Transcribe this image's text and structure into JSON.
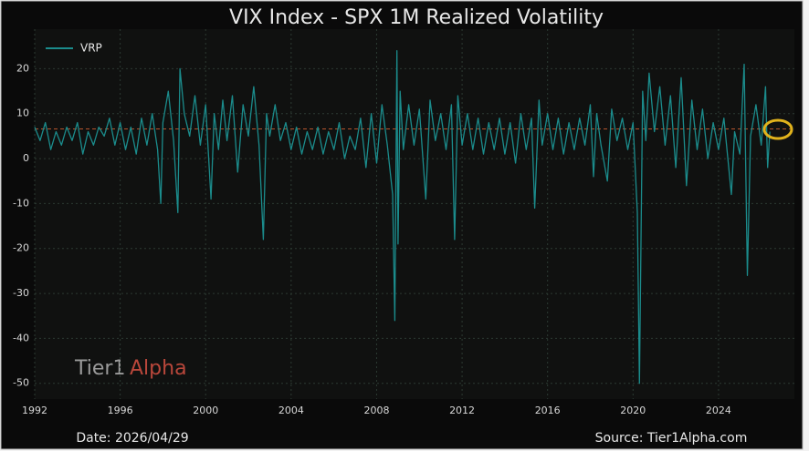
{
  "chart_data": {
    "type": "line",
    "title": "VIX Index - SPX 1M Realized Volatility",
    "x": [
      1992.0,
      1992.25,
      1992.5,
      1992.75,
      1993.0,
      1993.25,
      1993.5,
      1993.75,
      1994.0,
      1994.25,
      1994.5,
      1994.75,
      1995.0,
      1995.25,
      1995.5,
      1995.75,
      1996.0,
      1996.25,
      1996.5,
      1996.75,
      1997.0,
      1997.25,
      1997.5,
      1997.75,
      1997.9,
      1998.0,
      1998.25,
      1998.5,
      1998.7,
      1998.8,
      1999.0,
      1999.25,
      1999.5,
      1999.75,
      2000.0,
      2000.25,
      2000.4,
      2000.6,
      2000.8,
      2001.0,
      2001.25,
      2001.5,
      2001.75,
      2002.0,
      2002.25,
      2002.5,
      2002.7,
      2002.85,
      2003.0,
      2003.25,
      2003.5,
      2003.75,
      2004.0,
      2004.25,
      2004.5,
      2004.75,
      2005.0,
      2005.25,
      2005.5,
      2005.75,
      2006.0,
      2006.25,
      2006.5,
      2006.75,
      2007.0,
      2007.25,
      2007.5,
      2007.75,
      2008.0,
      2008.25,
      2008.5,
      2008.75,
      2008.85,
      2008.95,
      2009.0,
      2009.1,
      2009.25,
      2009.5,
      2009.75,
      2010.0,
      2010.3,
      2010.5,
      2010.75,
      2011.0,
      2011.25,
      2011.5,
      2011.65,
      2011.8,
      2012.0,
      2012.25,
      2012.5,
      2012.75,
      2013.0,
      2013.25,
      2013.5,
      2013.75,
      2014.0,
      2014.25,
      2014.5,
      2014.75,
      2015.0,
      2015.25,
      2015.4,
      2015.6,
      2015.75,
      2016.0,
      2016.25,
      2016.5,
      2016.75,
      2017.0,
      2017.25,
      2017.5,
      2017.75,
      2018.0,
      2018.15,
      2018.3,
      2018.5,
      2018.8,
      2019.0,
      2019.25,
      2019.5,
      2019.75,
      2020.0,
      2020.2,
      2020.3,
      2020.45,
      2020.6,
      2020.75,
      2021.0,
      2021.25,
      2021.5,
      2021.75,
      2022.0,
      2022.25,
      2022.5,
      2022.75,
      2023.0,
      2023.25,
      2023.5,
      2023.75,
      2024.0,
      2024.25,
      2024.6,
      2024.75,
      2025.0,
      2025.2,
      2025.35,
      2025.5,
      2025.75,
      2026.0,
      2026.2,
      2026.3,
      2026.4
    ],
    "series": [
      {
        "name": "VRP",
        "color": "#1b8c8c",
        "values": [
          7,
          4,
          8,
          2,
          6,
          3,
          7,
          4,
          8,
          1,
          6,
          3,
          7,
          5,
          9,
          3,
          8,
          2,
          7,
          1,
          9,
          3,
          10,
          2,
          -10,
          8,
          15,
          4,
          -12,
          20,
          10,
          5,
          14,
          3,
          12,
          -9,
          10,
          2,
          13,
          4,
          14,
          -3,
          12,
          5,
          16,
          3,
          -18,
          10,
          5,
          12,
          4,
          8,
          2,
          7,
          1,
          6,
          2,
          7,
          1,
          6,
          2,
          8,
          0,
          5,
          2,
          9,
          -2,
          10,
          -1,
          12,
          3,
          -8,
          -36,
          24,
          -19,
          15,
          2,
          12,
          3,
          11,
          -9,
          13,
          4,
          10,
          2,
          12,
          -18,
          14,
          3,
          10,
          2,
          9,
          1,
          8,
          2,
          9,
          1,
          8,
          -1,
          10,
          2,
          9,
          -11,
          13,
          3,
          10,
          2,
          9,
          1,
          8,
          2,
          9,
          3,
          12,
          -4,
          10,
          3,
          -5,
          11,
          4,
          9,
          2,
          8,
          -12,
          -50,
          15,
          4,
          19,
          6,
          16,
          3,
          14,
          -2,
          18,
          -6,
          13,
          2,
          11,
          0,
          8,
          2,
          9,
          -8,
          6,
          1,
          21,
          -26,
          5,
          12,
          3,
          16,
          -2,
          6
        ]
      }
    ],
    "reference_line": 6.6,
    "reference_color": "#b5552e",
    "xlim": [
      1992,
      2027.55
    ],
    "xticks": [
      1992,
      1996,
      2000,
      2004,
      2008,
      2012,
      2016,
      2020,
      2024
    ],
    "ylim": [
      -53.5,
      28.8
    ],
    "yticks": [
      -50,
      -40,
      -30,
      -20,
      -10,
      0,
      10,
      20
    ],
    "grid": true,
    "legend": "upper left",
    "watermark": [
      "Tier1",
      "Alpha"
    ],
    "footer_left": "Date: 2026/04/29",
    "footer_right": "Source: Tier1Alpha.com"
  }
}
